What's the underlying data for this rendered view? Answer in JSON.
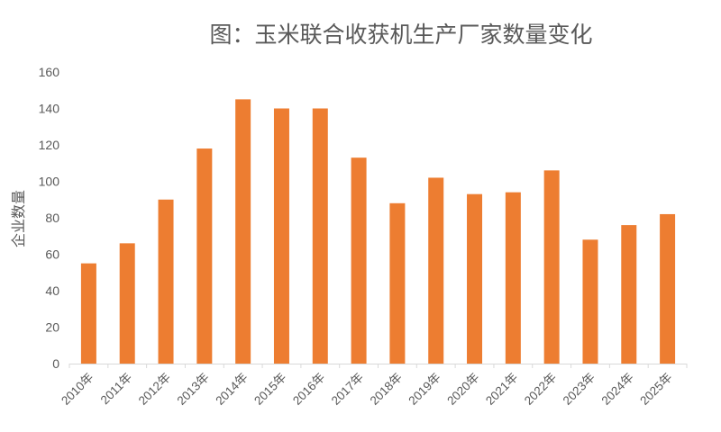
{
  "chart_data": {
    "type": "bar",
    "title": "图：玉米联合收获机生产厂家数量变化",
    "xlabel": "",
    "ylabel": "企业数量",
    "categories": [
      "2010年",
      "2011年",
      "2012年",
      "2013年",
      "2014年",
      "2015年",
      "2016年",
      "2017年",
      "2018年",
      "2019年",
      "2020年",
      "2021年",
      "2022年",
      "2023年",
      "2024年",
      "2025年"
    ],
    "values": [
      55,
      66,
      90,
      118,
      145,
      140,
      140,
      113,
      88,
      102,
      93,
      94,
      106,
      68,
      76,
      82
    ],
    "ylim": [
      0,
      160
    ],
    "yticks": [
      0,
      20,
      40,
      60,
      80,
      100,
      120,
      140,
      160
    ],
    "grid": false,
    "legend": "none",
    "bar_color": "#ed7d31",
    "text_color": "#595959",
    "axis_color": "#d9d9d9"
  }
}
